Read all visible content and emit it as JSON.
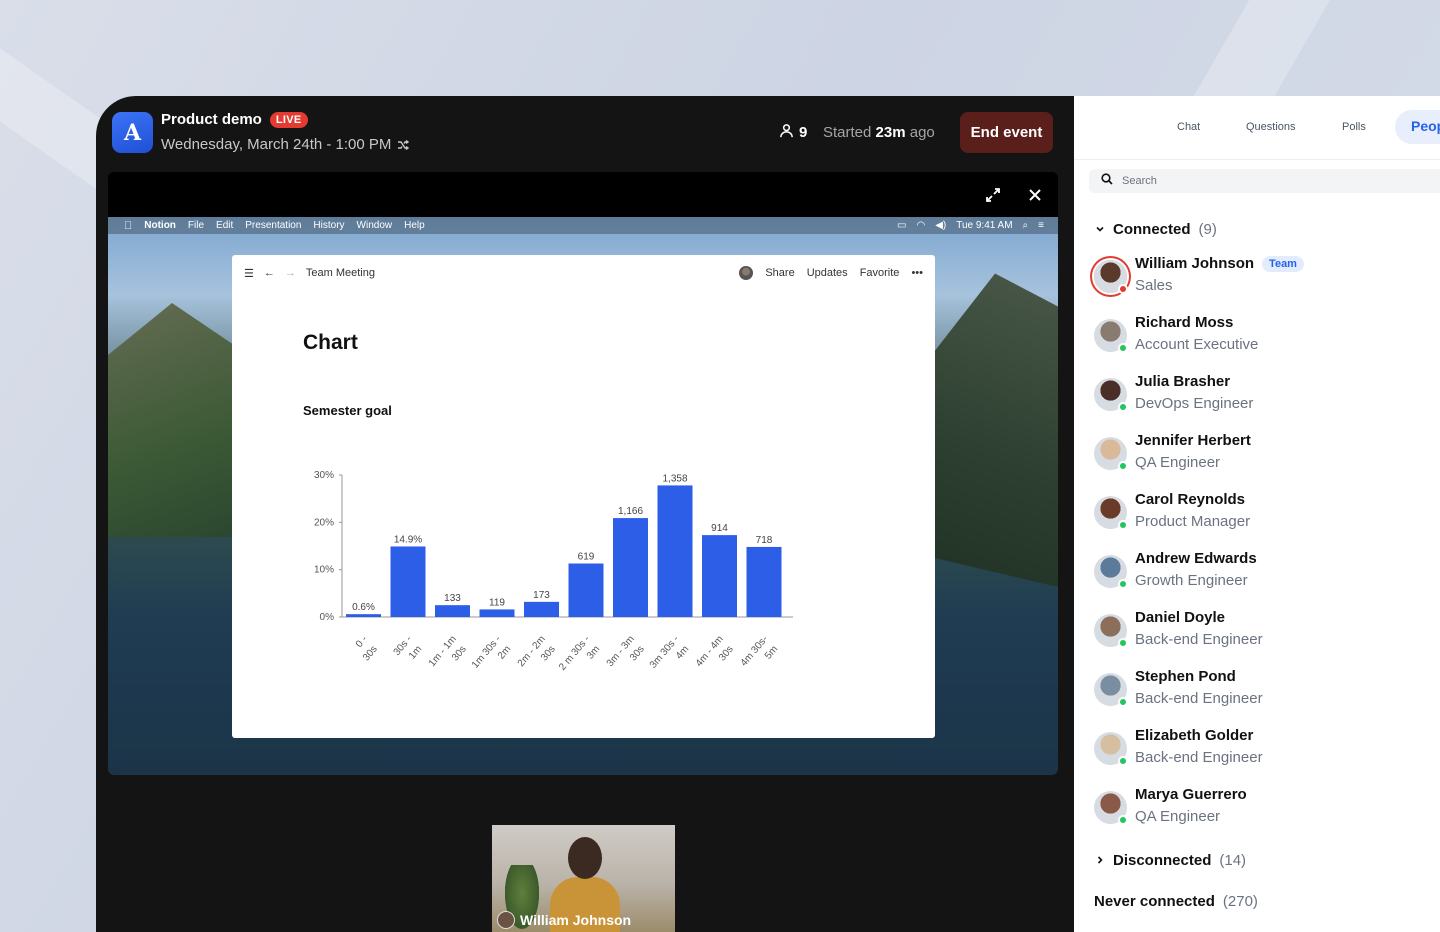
{
  "event": {
    "app_letter": "A",
    "title": "Product demo",
    "live_label": "LIVE",
    "date": "Wednesday, March 24th - 1:00 PM",
    "participant_count": "9",
    "started_prefix": "Started",
    "started_value": "23m",
    "started_suffix": "ago",
    "end_button": "End event"
  },
  "desktop": {
    "menubar": {
      "app": "Notion",
      "items": [
        "File",
        "Edit",
        "Presentation",
        "History",
        "Window",
        "Help"
      ],
      "clock": "Tue 9:41 AM"
    },
    "notion": {
      "breadcrumb": "Team Meeting",
      "actions": [
        "Share",
        "Updates",
        "Favorite"
      ],
      "page_title": "Chart",
      "subtitle": "Semester goal"
    }
  },
  "chart_data": {
    "type": "bar",
    "title": "Semester goal",
    "categories": [
      "0 - 30s",
      "30s - 1m",
      "1m - 1m 30s",
      "1m 30s - 2m",
      "2m - 2m 30s",
      "2 m 30s - 3m",
      "3m - 3m 30s",
      "3m 30s - 4m",
      "4m - 4m 30s",
      "4m 30s - 5m"
    ],
    "category_lines": [
      [
        "0 -",
        "30s"
      ],
      [
        "30s -",
        "1m"
      ],
      [
        "1m - 1m",
        "30s"
      ],
      [
        "1m 30s -",
        "2m"
      ],
      [
        "2m - 2m",
        "30s"
      ],
      [
        "2 m 30s -",
        "3m"
      ],
      [
        "3m - 3m",
        "30s"
      ],
      [
        "3m 30s -",
        "4m"
      ],
      [
        "4m - 4m",
        "30s"
      ],
      [
        "4m 30s-",
        "5m"
      ]
    ],
    "values": [
      0.6,
      14.9,
      2.5,
      1.6,
      3.2,
      11.3,
      20.9,
      27.8,
      17.3,
      14.8
    ],
    "data_labels": [
      "0.6%",
      "14.9%",
      "133",
      "119",
      "173",
      "619",
      "1,166",
      "1,358",
      "914",
      "718"
    ],
    "yticks": [
      "0%",
      "10%",
      "20%",
      "30%"
    ],
    "ylim": [
      0,
      30
    ],
    "bar_color": "#2d5ee8",
    "grid": false
  },
  "self_view": {
    "name": "William Johnson"
  },
  "panel": {
    "tabs": [
      "Chat",
      "Questions",
      "Polls"
    ],
    "active_tab": "Peop",
    "search_placeholder": "Search",
    "connected": {
      "label": "Connected",
      "count": "(9)"
    },
    "people": [
      {
        "name": "William Johnson",
        "role": "Sales",
        "badge": "Team",
        "status": "#e23b32",
        "skin": "#5a3a2a",
        "ring": true
      },
      {
        "name": "Richard Moss",
        "role": "Account Executive",
        "status": "#22c55e",
        "skin": "#8a7b70"
      },
      {
        "name": "Julia Brasher",
        "role": "DevOps Engineer",
        "status": "#22c55e",
        "skin": "#4a2e28"
      },
      {
        "name": "Jennifer Herbert",
        "role": "QA Engineer",
        "status": "#22c55e",
        "skin": "#d8b99a"
      },
      {
        "name": "Carol Reynolds",
        "role": "Product Manager",
        "status": "#22c55e",
        "skin": "#6b3b2a"
      },
      {
        "name": "Andrew Edwards",
        "role": "Growth Engineer",
        "status": "#22c55e",
        "skin": "#5c7a9a"
      },
      {
        "name": "Daniel Doyle",
        "role": "Back-end Engineer",
        "status": "#22c55e",
        "skin": "#8b6f5a"
      },
      {
        "name": "Stephen Pond",
        "role": "Back-end Engineer",
        "status": "#22c55e",
        "skin": "#7a8ea2"
      },
      {
        "name": "Elizabeth Golder",
        "role": "Back-end Engineer",
        "status": "#22c55e",
        "skin": "#d6bfa0"
      },
      {
        "name": "Marya Guerrero",
        "role": "QA Engineer",
        "status": "#22c55e",
        "skin": "#8a5a48"
      }
    ],
    "disconnected": {
      "label": "Disconnected",
      "count": "(14)"
    },
    "never_connected": {
      "label": "Never connected",
      "count": "(270)"
    }
  }
}
